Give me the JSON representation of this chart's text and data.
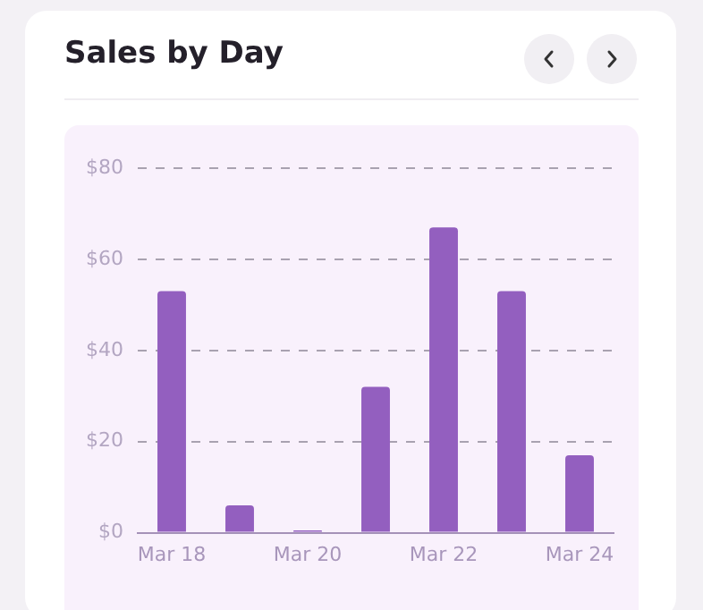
{
  "chart_data": {
    "type": "bar",
    "title": "Sales by Day",
    "categories": [
      "Mar 18",
      null,
      "Mar 20",
      null,
      "Mar 22",
      null,
      "Mar 24"
    ],
    "values": [
      53,
      6,
      0.5,
      32,
      67,
      53,
      17
    ],
    "color": "#935fbf",
    "ylim": [
      0,
      80
    ],
    "yticks": [
      {
        "value": 0,
        "label": "$0"
      },
      {
        "value": 20,
        "label": "$20"
      },
      {
        "value": 40,
        "label": "$40"
      },
      {
        "value": 60,
        "label": "$60"
      },
      {
        "value": 80,
        "label": "$80"
      }
    ],
    "grid": "y",
    "legend": false
  }
}
